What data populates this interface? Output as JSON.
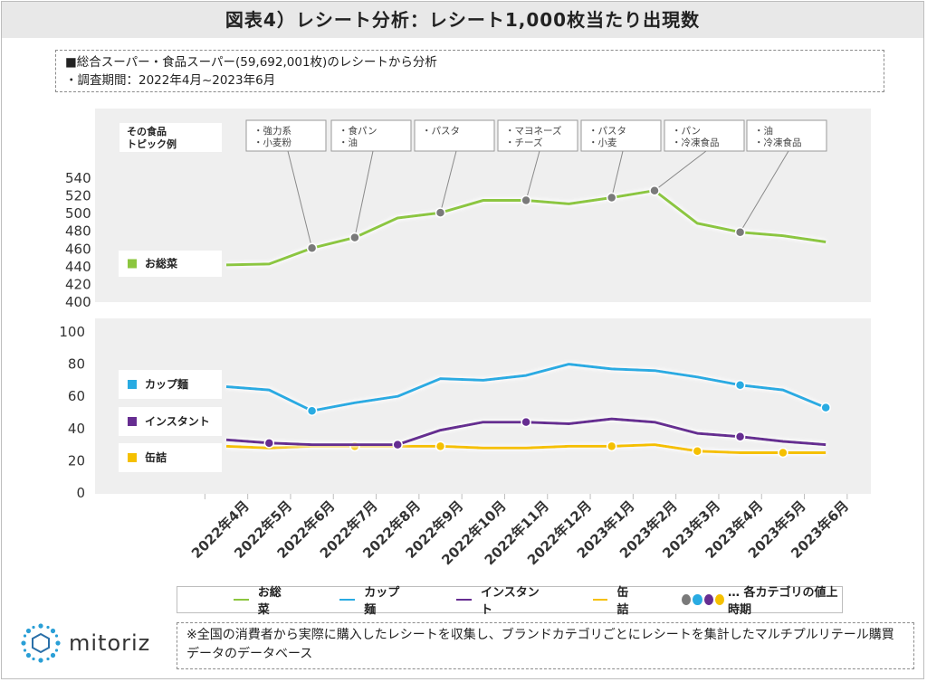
{
  "title": "図表4）レシート分析：レシート1,000枚当たり出現数",
  "notes": [
    "■総合スーパー・食品スーパー(59,692,001枚)のレシートから分析",
    "・調査期間：2022年4月~2023年6月"
  ],
  "topics_header": "その食品\nトピック例",
  "topics": [
    {
      "lines": [
        "・強力系",
        "・小麦粉"
      ],
      "x_index": 2
    },
    {
      "lines": [
        "・食パン",
        "・油"
      ],
      "x_index": 3
    },
    {
      "lines": [
        "・パスタ"
      ],
      "x_index": 5
    },
    {
      "lines": [
        "・マヨネーズ",
        "・チーズ"
      ],
      "x_index": 7
    },
    {
      "lines": [
        "・パスタ",
        "・小麦"
      ],
      "x_index": 9
    },
    {
      "lines": [
        "・パン",
        "・冷凍食品"
      ],
      "x_index": 10
    },
    {
      "lines": [
        "・油",
        "・冷凍食品"
      ],
      "x_index": 12
    }
  ],
  "chart_data": [
    {
      "type": "line",
      "x": [
        "2022年4月",
        "2022年5月",
        "2022年6月",
        "2022年7月",
        "2022年8月",
        "2022年9月",
        "2022年10月",
        "2022年11月",
        "2022年12月",
        "2023年1月",
        "2023年2月",
        "2023年3月",
        "2023年4月",
        "2023年5月",
        "2023年6月"
      ],
      "ylim": [
        400,
        540
      ],
      "yticks": [
        400,
        420,
        440,
        460,
        480,
        500,
        520,
        540
      ],
      "series": [
        {
          "name": "お総菜",
          "color": "#8cc63f",
          "values": [
            442,
            443,
            461,
            473,
            495,
            501,
            515,
            515,
            511,
            518,
            526,
            489,
            479,
            475,
            468
          ],
          "markers": [
            2,
            3,
            5,
            7,
            9,
            10,
            12
          ],
          "marker_color": "#7a7a7a"
        }
      ]
    },
    {
      "type": "line",
      "x": [
        "2022年4月",
        "2022年5月",
        "2022年6月",
        "2022年7月",
        "2022年8月",
        "2022年9月",
        "2022年10月",
        "2022年11月",
        "2022年12月",
        "2023年1月",
        "2023年2月",
        "2023年3月",
        "2023年4月",
        "2023年5月",
        "2023年6月"
      ],
      "ylim": [
        0,
        100
      ],
      "yticks": [
        0,
        20,
        40,
        60,
        80,
        100
      ],
      "series": [
        {
          "name": "カップ麺",
          "color": "#29abe2",
          "values": [
            66,
            64,
            51,
            56,
            60,
            71,
            70,
            73,
            80,
            77,
            76,
            72,
            67,
            64,
            53
          ],
          "markers": [
            2,
            12,
            14
          ],
          "marker_color": "#29abe2"
        },
        {
          "name": "インスタント",
          "color": "#662d91",
          "values": [
            33,
            31,
            30,
            30,
            30,
            39,
            44,
            44,
            43,
            46,
            44,
            37,
            35,
            32,
            30
          ],
          "markers": [
            1,
            4,
            7,
            12
          ],
          "marker_color": "#662d91"
        },
        {
          "name": "缶詰",
          "color": "#f5c000",
          "values": [
            29,
            28,
            29,
            29,
            29,
            29,
            28,
            28,
            29,
            29,
            30,
            26,
            25,
            25,
            25
          ],
          "markers": [
            3,
            5,
            9,
            11,
            13
          ],
          "marker_color": "#f5c000"
        }
      ]
    }
  ],
  "legend": {
    "items": [
      {
        "label": "お総菜",
        "color": "#8cc63f"
      },
      {
        "label": "カップ麺",
        "color": "#29abe2"
      },
      {
        "label": "インスタント",
        "color": "#662d91"
      },
      {
        "label": "缶詰",
        "color": "#f5c000"
      }
    ],
    "dot_colors": [
      "#7a7a7a",
      "#29abe2",
      "#662d91",
      "#f5c000"
    ],
    "dots_label": "… 各カテゴリの値上時期"
  },
  "logo_text": "mitoriz",
  "footer": "※全国の消費者から実際に購入したレシートを収集し、ブランドカテゴリごとにレシートを集計したマルチプルリテール購買データのデータベース"
}
